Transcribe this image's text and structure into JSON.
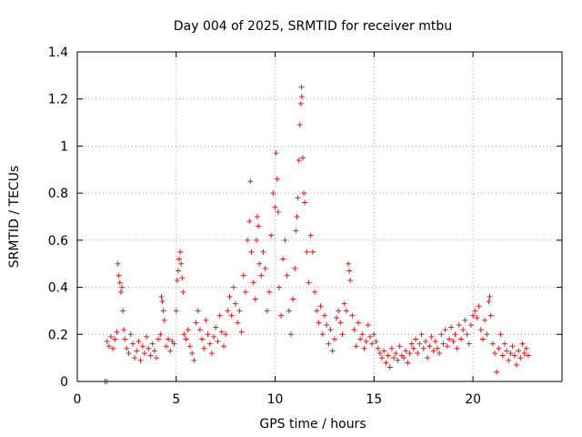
{
  "chart_data": {
    "type": "scatter",
    "title": "Day 004 of 2025, SRMTID for receiver mtbu",
    "xlabel": "GPS time / hours",
    "ylabel": "SRMTID / TECUs",
    "xlim": [
      0,
      24.5
    ],
    "ylim": [
      0,
      1.4
    ],
    "xticks": [
      0,
      5,
      10,
      15,
      20
    ],
    "xtick_labels": [
      "0",
      "5",
      "10",
      "15",
      "20"
    ],
    "yticks": [
      0,
      0.2,
      0.4,
      0.6,
      0.8,
      1.0,
      1.2,
      1.4
    ],
    "ytick_labels": [
      "0",
      "0.2",
      "0.4",
      "0.6",
      "0.8",
      "1",
      "1.2",
      "1.4"
    ],
    "grid": true,
    "marker": "+",
    "color": "#e41a1c",
    "x_range_observed": [
      1.4,
      22.8
    ],
    "series": [
      {
        "name": "SRMTID",
        "points": [
          [
            1.4,
            0.0
          ],
          [
            1.5,
            0.0
          ],
          [
            1.5,
            0.17
          ],
          [
            1.6,
            0.15
          ],
          [
            1.7,
            0.19
          ],
          [
            1.8,
            0.14
          ],
          [
            1.9,
            0.18
          ],
          [
            2.0,
            0.21
          ],
          [
            2.05,
            0.5
          ],
          [
            2.1,
            0.45
          ],
          [
            2.15,
            0.42
          ],
          [
            2.2,
            0.38
          ],
          [
            2.25,
            0.4
          ],
          [
            2.3,
            0.3
          ],
          [
            2.35,
            0.22
          ],
          [
            2.4,
            0.18
          ],
          [
            2.5,
            0.14
          ],
          [
            2.6,
            0.12
          ],
          [
            2.7,
            0.2
          ],
          [
            2.8,
            0.16
          ],
          [
            2.9,
            0.1
          ],
          [
            3.0,
            0.13
          ],
          [
            3.1,
            0.17
          ],
          [
            3.2,
            0.09
          ],
          [
            3.3,
            0.15
          ],
          [
            3.4,
            0.12
          ],
          [
            3.5,
            0.19
          ],
          [
            3.6,
            0.14
          ],
          [
            3.7,
            0.11
          ],
          [
            3.8,
            0.16
          ],
          [
            3.9,
            0.13
          ],
          [
            4.0,
            0.1
          ],
          [
            4.1,
            0.18
          ],
          [
            4.2,
            0.2
          ],
          [
            4.25,
            0.36
          ],
          [
            4.3,
            0.34
          ],
          [
            4.35,
            0.3
          ],
          [
            4.4,
            0.26
          ],
          [
            4.5,
            0.15
          ],
          [
            4.6,
            0.18
          ],
          [
            4.7,
            0.13
          ],
          [
            4.8,
            0.17
          ],
          [
            4.9,
            0.16
          ],
          [
            5.0,
            0.3
          ],
          [
            5.05,
            0.43
          ],
          [
            5.1,
            0.47
          ],
          [
            5.15,
            0.52
          ],
          [
            5.2,
            0.55
          ],
          [
            5.25,
            0.5
          ],
          [
            5.3,
            0.44
          ],
          [
            5.35,
            0.38
          ],
          [
            5.4,
            0.2
          ],
          [
            5.5,
            0.18
          ],
          [
            5.6,
            0.22
          ],
          [
            5.7,
            0.15
          ],
          [
            5.8,
            0.12
          ],
          [
            5.9,
            0.09
          ],
          [
            6.0,
            0.25
          ],
          [
            6.1,
            0.3
          ],
          [
            6.2,
            0.22
          ],
          [
            6.3,
            0.18
          ],
          [
            6.4,
            0.14
          ],
          [
            6.5,
            0.26
          ],
          [
            6.6,
            0.2
          ],
          [
            6.7,
            0.16
          ],
          [
            6.8,
            0.12
          ],
          [
            6.9,
            0.19
          ],
          [
            7.0,
            0.23
          ],
          [
            7.1,
            0.17
          ],
          [
            7.2,
            0.28
          ],
          [
            7.3,
            0.21
          ],
          [
            7.4,
            0.15
          ],
          [
            7.5,
            0.2
          ],
          [
            7.6,
            0.3
          ],
          [
            7.7,
            0.36
          ],
          [
            7.8,
            0.28
          ],
          [
            7.9,
            0.4
          ],
          [
            8.0,
            0.33
          ],
          [
            8.1,
            0.25
          ],
          [
            8.2,
            0.3
          ],
          [
            8.3,
            0.21
          ],
          [
            8.4,
            0.45
          ],
          [
            8.5,
            0.38
          ],
          [
            8.6,
            0.6
          ],
          [
            8.7,
            0.68
          ],
          [
            8.75,
            0.85
          ],
          [
            8.8,
            0.55
          ],
          [
            8.9,
            0.42
          ],
          [
            9.0,
            0.35
          ],
          [
            9.05,
            0.6
          ],
          [
            9.1,
            0.7
          ],
          [
            9.15,
            0.66
          ],
          [
            9.2,
            0.5
          ],
          [
            9.3,
            0.45
          ],
          [
            9.4,
            0.55
          ],
          [
            9.5,
            0.48
          ],
          [
            9.6,
            0.3
          ],
          [
            9.7,
            0.38
          ],
          [
            9.8,
            0.62
          ],
          [
            9.9,
            0.8
          ],
          [
            10.0,
            0.74
          ],
          [
            10.05,
            0.97
          ],
          [
            10.1,
            0.86
          ],
          [
            10.15,
            0.72
          ],
          [
            10.2,
            0.4
          ],
          [
            10.3,
            0.28
          ],
          [
            10.4,
            0.52
          ],
          [
            10.5,
            0.6
          ],
          [
            10.6,
            0.45
          ],
          [
            10.7,
            0.3
          ],
          [
            10.8,
            0.2
          ],
          [
            10.9,
            0.35
          ],
          [
            11.0,
            0.48
          ],
          [
            11.05,
            0.64
          ],
          [
            11.1,
            0.7
          ],
          [
            11.15,
            0.78
          ],
          [
            11.2,
            0.94
          ],
          [
            11.25,
            1.09
          ],
          [
            11.3,
            1.18
          ],
          [
            11.33,
            1.25
          ],
          [
            11.35,
            1.21
          ],
          [
            11.4,
            0.95
          ],
          [
            11.45,
            0.8
          ],
          [
            11.5,
            0.76
          ],
          [
            11.6,
            0.55
          ],
          [
            11.7,
            0.42
          ],
          [
            11.8,
            0.62
          ],
          [
            11.9,
            0.55
          ],
          [
            12.0,
            0.38
          ],
          [
            12.1,
            0.3
          ],
          [
            12.2,
            0.25
          ],
          [
            12.3,
            0.32
          ],
          [
            12.4,
            0.2
          ],
          [
            12.5,
            0.28
          ],
          [
            12.6,
            0.24
          ],
          [
            12.7,
            0.16
          ],
          [
            12.8,
            0.22
          ],
          [
            12.9,
            0.13
          ],
          [
            13.0,
            0.18
          ],
          [
            13.1,
            0.27
          ],
          [
            13.2,
            0.3
          ],
          [
            13.3,
            0.25
          ],
          [
            13.4,
            0.2
          ],
          [
            13.5,
            0.33
          ],
          [
            13.6,
            0.3
          ],
          [
            13.7,
            0.5
          ],
          [
            13.75,
            0.47
          ],
          [
            13.8,
            0.43
          ],
          [
            13.9,
            0.28
          ],
          [
            14.0,
            0.22
          ],
          [
            14.1,
            0.15
          ],
          [
            14.2,
            0.25
          ],
          [
            14.3,
            0.18
          ],
          [
            14.4,
            0.2
          ],
          [
            14.5,
            0.14
          ],
          [
            14.6,
            0.17
          ],
          [
            14.7,
            0.24
          ],
          [
            14.8,
            0.19
          ],
          [
            14.9,
            0.16
          ],
          [
            15.0,
            0.2
          ],
          [
            15.1,
            0.17
          ],
          [
            15.2,
            0.14
          ],
          [
            15.3,
            0.12
          ],
          [
            15.4,
            0.1
          ],
          [
            15.5,
            0.13
          ],
          [
            15.6,
            0.08
          ],
          [
            15.7,
            0.11
          ],
          [
            15.8,
            0.06
          ],
          [
            15.9,
            0.14
          ],
          [
            16.0,
            0.1
          ],
          [
            16.1,
            0.12
          ],
          [
            16.2,
            0.09
          ],
          [
            16.3,
            0.15
          ],
          [
            16.4,
            0.11
          ],
          [
            16.5,
            0.1
          ],
          [
            16.6,
            0.13
          ],
          [
            16.7,
            0.08
          ],
          [
            16.8,
            0.12
          ],
          [
            16.9,
            0.16
          ],
          [
            17.0,
            0.14
          ],
          [
            17.1,
            0.18
          ],
          [
            17.2,
            0.12
          ],
          [
            17.3,
            0.16
          ],
          [
            17.4,
            0.2
          ],
          [
            17.5,
            0.14
          ],
          [
            17.6,
            0.17
          ],
          [
            17.7,
            0.1
          ],
          [
            17.8,
            0.15
          ],
          [
            17.9,
            0.19
          ],
          [
            18.0,
            0.13
          ],
          [
            18.1,
            0.17
          ],
          [
            18.2,
            0.14
          ],
          [
            18.3,
            0.12
          ],
          [
            18.4,
            0.2
          ],
          [
            18.5,
            0.16
          ],
          [
            18.6,
            0.22
          ],
          [
            18.7,
            0.15
          ],
          [
            18.8,
            0.18
          ],
          [
            18.9,
            0.23
          ],
          [
            19.0,
            0.17
          ],
          [
            19.1,
            0.2
          ],
          [
            19.2,
            0.14
          ],
          [
            19.3,
            0.24
          ],
          [
            19.4,
            0.18
          ],
          [
            19.5,
            0.22
          ],
          [
            19.6,
            0.26
          ],
          [
            19.7,
            0.2
          ],
          [
            19.8,
            0.16
          ],
          [
            19.9,
            0.24
          ],
          [
            20.0,
            0.28
          ],
          [
            20.1,
            0.3
          ],
          [
            20.2,
            0.27
          ],
          [
            20.3,
            0.32
          ],
          [
            20.4,
            0.22
          ],
          [
            20.5,
            0.18
          ],
          [
            20.6,
            0.26
          ],
          [
            20.7,
            0.2
          ],
          [
            20.8,
            0.34
          ],
          [
            20.85,
            0.36
          ],
          [
            20.9,
            0.28
          ],
          [
            21.0,
            0.16
          ],
          [
            21.1,
            0.12
          ],
          [
            21.2,
            0.04
          ],
          [
            21.3,
            0.14
          ],
          [
            21.4,
            0.2
          ],
          [
            21.5,
            0.11
          ],
          [
            21.6,
            0.16
          ],
          [
            21.7,
            0.13
          ],
          [
            21.8,
            0.09
          ],
          [
            21.9,
            0.12
          ],
          [
            22.0,
            0.15
          ],
          [
            22.1,
            0.11
          ],
          [
            22.2,
            0.07
          ],
          [
            22.3,
            0.13
          ],
          [
            22.4,
            0.1
          ],
          [
            22.5,
            0.16
          ],
          [
            22.6,
            0.12
          ],
          [
            22.7,
            0.14
          ],
          [
            22.8,
            0.11
          ]
        ]
      }
    ]
  }
}
